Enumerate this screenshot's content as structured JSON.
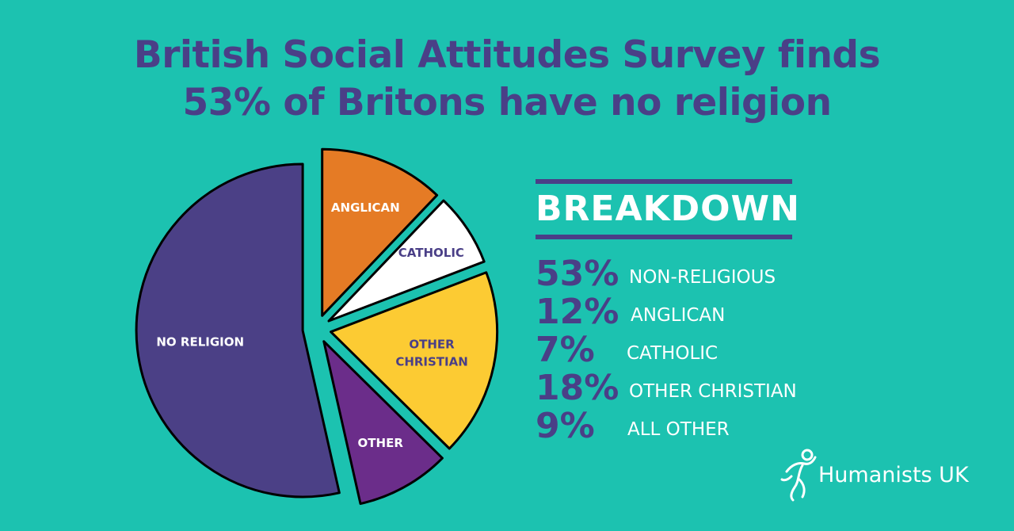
{
  "title": {
    "line1": "British Social Attitudes Survey finds",
    "line2": "53% of Britons have no religion"
  },
  "chart_data": {
    "type": "pie",
    "title": "British Social Attitudes Survey finds 53% of Britons have no religion",
    "slices": [
      {
        "label": "NO RELIGION",
        "value": 53,
        "color": "#4b4086",
        "text_color": "#ffffff",
        "exploded": true
      },
      {
        "label": "ANGLICAN",
        "value": 12,
        "color": "#e57b25",
        "text_color": "#ffffff",
        "exploded": true
      },
      {
        "label": "CATHOLIC",
        "value": 7,
        "color": "#ffffff",
        "text_color": "#4a3f87",
        "exploded": true
      },
      {
        "label": "OTHER CHRISTIAN",
        "value": 18,
        "color": "#fccb33",
        "text_color": "#4a3f87",
        "exploded": true
      },
      {
        "label": "OTHER",
        "value": 9,
        "color": "#6b2d8a",
        "text_color": "#ffffff",
        "exploded": true
      }
    ]
  },
  "breakdown": {
    "heading": "BREAKDOWN",
    "rows": [
      {
        "pct": "53%",
        "label": "NON-RELIGIOUS"
      },
      {
        "pct": "12%",
        "label": "ANGLICAN"
      },
      {
        "pct": "7%",
        "label": "CATHOLIC"
      },
      {
        "pct": "18%",
        "label": "OTHER CHRISTIAN"
      },
      {
        "pct": "9%",
        "label": "ALL OTHER"
      }
    ]
  },
  "logo": {
    "text": "Humanists UK"
  },
  "colors": {
    "background": "#1cc2b0",
    "accent": "#4a3f87",
    "white": "#ffffff"
  }
}
